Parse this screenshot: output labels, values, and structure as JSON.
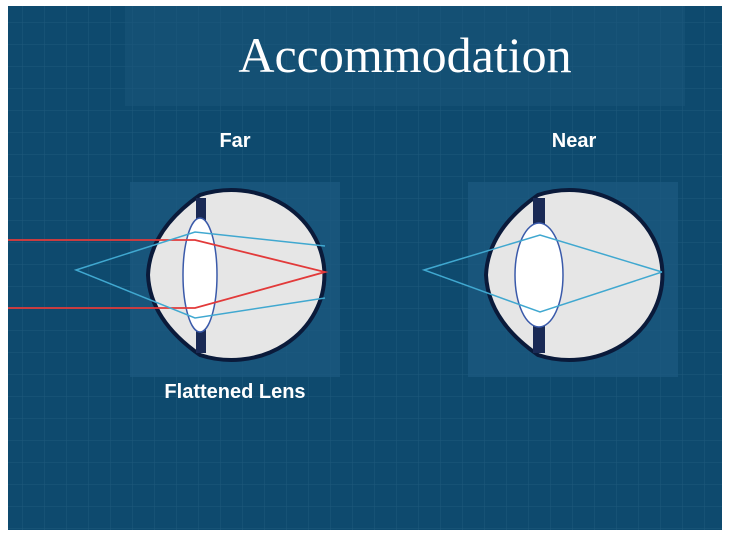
{
  "title": "Accommodation",
  "panels": [
    {
      "label": "Far",
      "caption": "Flattened Lens"
    },
    {
      "label": "Near"
    }
  ]
}
